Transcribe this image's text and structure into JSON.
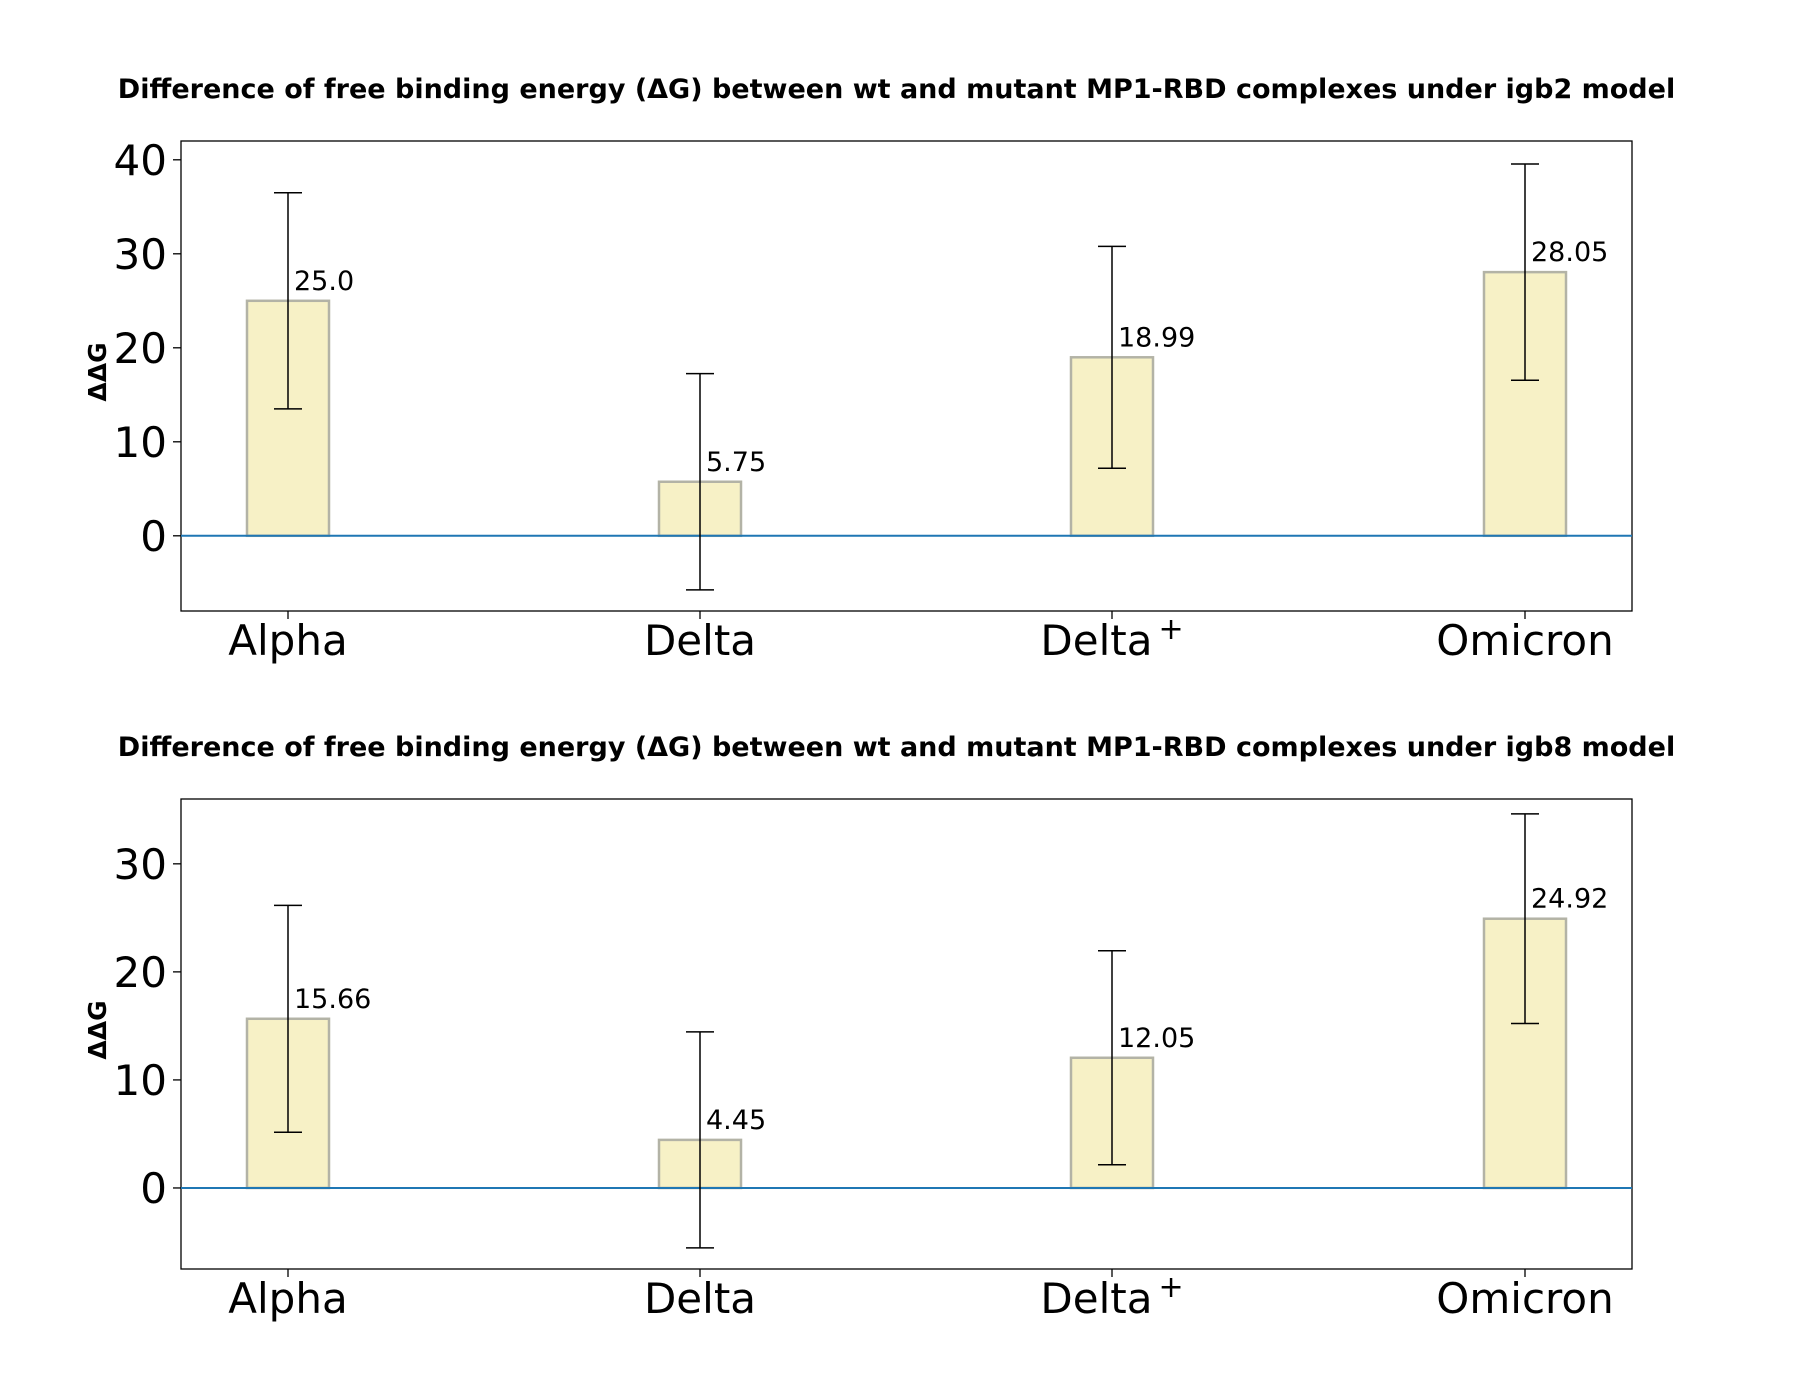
{
  "chart_data": [
    {
      "type": "bar",
      "title": "Difference of free binding energy (ΔG) between wt and mutant MP1-RBD complexes under igb2 model",
      "xlabel": "",
      "ylabel": "ΔΔG",
      "categories": [
        {
          "label": "Delta",
          "sup": ""
        },
        {
          "label": "Delta",
          "sup": ""
        },
        {
          "label": "Delta",
          "sup": "+"
        },
        {
          "label": "Omicron",
          "sup": ""
        }
      ],
      "values": [
        25.0,
        5.75,
        18.99,
        28.05
      ],
      "value_labels": [
        "25.0",
        "5.75",
        "18.99",
        "28.05"
      ],
      "error": [
        11.5,
        11.5,
        11.8,
        11.5
      ],
      "ylim": [
        -8,
        42
      ],
      "yticks": [
        0,
        10,
        20,
        30,
        40
      ],
      "baseline": 0,
      "grid": false,
      "legend": "none"
    },
    {
      "type": "bar",
      "title": "Difference of free binding energy (ΔG) between wt and mutant MP1-RBD complexes under igb8 model",
      "xlabel": "",
      "ylabel": "ΔΔG",
      "categories": [
        {
          "label": "Alpha",
          "sup": ""
        },
        {
          "label": "Delta",
          "sup": ""
        },
        {
          "label": "Delta",
          "sup": "+"
        },
        {
          "label": "Omicron",
          "sup": ""
        }
      ],
      "values": [
        15.66,
        4.45,
        12.05,
        24.92
      ],
      "value_labels": [
        "15.66",
        "4.45",
        "12.05",
        "24.92"
      ],
      "error": [
        10.5,
        10.0,
        9.9,
        9.7
      ],
      "ylim": [
        -7.5,
        36
      ],
      "yticks": [
        0,
        10,
        20,
        30
      ],
      "baseline": 0,
      "grid": false,
      "legend": "none"
    }
  ],
  "colors": {
    "bar_fill": "#f7f1c6",
    "bar_edge": "#b3b3a6",
    "baseline": "#1f77b4",
    "error": "#000000"
  }
}
